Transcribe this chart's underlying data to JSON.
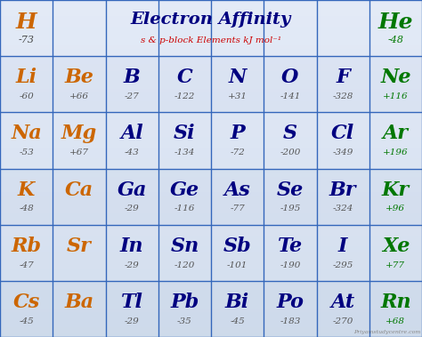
{
  "title": "Electron Affinity",
  "subtitle": "s & p-block Elements kJ mol⁻¹",
  "bg_top": "#e8eef8",
  "bg_bottom": "#c8d8ee",
  "row_colors": [
    "#dde8f4",
    "#eef2f8",
    "#dde8f4",
    "#eef2f8",
    "#dde8f4",
    "#eef2f8"
  ],
  "grid_color": "#3366bb",
  "watermark": "Priyamstudycentre.com",
  "n_rows": 6,
  "n_cols": 8,
  "elements": [
    [
      {
        "symbol": "H",
        "value": "-73",
        "sym_color": "#cc6600",
        "val_color": "#555555"
      },
      {
        "symbol": "",
        "value": "",
        "sym_color": "#000080",
        "val_color": "#555555",
        "is_title": true
      },
      {
        "symbol": "He",
        "value": "-48",
        "sym_color": "#007700",
        "val_color": "#007700"
      }
    ],
    [
      {
        "symbol": "Li",
        "value": "-60",
        "sym_color": "#cc6600",
        "val_color": "#555555"
      },
      {
        "symbol": "Be",
        "value": "+66",
        "sym_color": "#cc6600",
        "val_color": "#555555"
      },
      {
        "symbol": "B",
        "value": "-27",
        "sym_color": "#000080",
        "val_color": "#555555"
      },
      {
        "symbol": "C",
        "value": "-122",
        "sym_color": "#000080",
        "val_color": "#555555"
      },
      {
        "symbol": "N",
        "value": "+31",
        "sym_color": "#000080",
        "val_color": "#555555"
      },
      {
        "symbol": "O",
        "value": "-141",
        "sym_color": "#000080",
        "val_color": "#555555"
      },
      {
        "symbol": "F",
        "value": "-328",
        "sym_color": "#000080",
        "val_color": "#555555"
      },
      {
        "symbol": "Ne",
        "value": "+116",
        "sym_color": "#007700",
        "val_color": "#007700"
      }
    ],
    [
      {
        "symbol": "Na",
        "value": "-53",
        "sym_color": "#cc6600",
        "val_color": "#555555"
      },
      {
        "symbol": "Mg",
        "value": "+67",
        "sym_color": "#cc6600",
        "val_color": "#555555"
      },
      {
        "symbol": "Al",
        "value": "-43",
        "sym_color": "#000080",
        "val_color": "#555555"
      },
      {
        "symbol": "Si",
        "value": "-134",
        "sym_color": "#000080",
        "val_color": "#555555"
      },
      {
        "symbol": "P",
        "value": "-72",
        "sym_color": "#000080",
        "val_color": "#555555"
      },
      {
        "symbol": "S",
        "value": "-200",
        "sym_color": "#000080",
        "val_color": "#555555"
      },
      {
        "symbol": "Cl",
        "value": "-349",
        "sym_color": "#000080",
        "val_color": "#555555"
      },
      {
        "symbol": "Ar",
        "value": "+196",
        "sym_color": "#007700",
        "val_color": "#007700"
      }
    ],
    [
      {
        "symbol": "K",
        "value": "-48",
        "sym_color": "#cc6600",
        "val_color": "#555555"
      },
      {
        "symbol": "Ca",
        "value": "",
        "sym_color": "#cc6600",
        "val_color": "#555555"
      },
      {
        "symbol": "Ga",
        "value": "-29",
        "sym_color": "#000080",
        "val_color": "#555555"
      },
      {
        "symbol": "Ge",
        "value": "-116",
        "sym_color": "#000080",
        "val_color": "#555555"
      },
      {
        "symbol": "As",
        "value": "-77",
        "sym_color": "#000080",
        "val_color": "#555555"
      },
      {
        "symbol": "Se",
        "value": "-195",
        "sym_color": "#000080",
        "val_color": "#555555"
      },
      {
        "symbol": "Br",
        "value": "-324",
        "sym_color": "#000080",
        "val_color": "#555555"
      },
      {
        "symbol": "Kr",
        "value": "+96",
        "sym_color": "#007700",
        "val_color": "#007700"
      }
    ],
    [
      {
        "symbol": "Rb",
        "value": "-47",
        "sym_color": "#cc6600",
        "val_color": "#555555"
      },
      {
        "symbol": "Sr",
        "value": "",
        "sym_color": "#cc6600",
        "val_color": "#555555"
      },
      {
        "symbol": "In",
        "value": "-29",
        "sym_color": "#000080",
        "val_color": "#555555"
      },
      {
        "symbol": "Sn",
        "value": "-120",
        "sym_color": "#000080",
        "val_color": "#555555"
      },
      {
        "symbol": "Sb",
        "value": "-101",
        "sym_color": "#000080",
        "val_color": "#555555"
      },
      {
        "symbol": "Te",
        "value": "-190",
        "sym_color": "#000080",
        "val_color": "#555555"
      },
      {
        "symbol": "I",
        "value": "-295",
        "sym_color": "#000080",
        "val_color": "#555555"
      },
      {
        "symbol": "Xe",
        "value": "+77",
        "sym_color": "#007700",
        "val_color": "#007700"
      }
    ],
    [
      {
        "symbol": "Cs",
        "value": "-45",
        "sym_color": "#cc6600",
        "val_color": "#555555"
      },
      {
        "symbol": "Ba",
        "value": "",
        "sym_color": "#cc6600",
        "val_color": "#555555"
      },
      {
        "symbol": "Tl",
        "value": "-29",
        "sym_color": "#000080",
        "val_color": "#555555"
      },
      {
        "symbol": "Pb",
        "value": "-35",
        "sym_color": "#000080",
        "val_color": "#555555"
      },
      {
        "symbol": "Bi",
        "value": "-45",
        "sym_color": "#000080",
        "val_color": "#555555"
      },
      {
        "symbol": "Po",
        "value": "-183",
        "sym_color": "#000080",
        "val_color": "#555555"
      },
      {
        "symbol": "At",
        "value": "-270",
        "sym_color": "#000080",
        "val_color": "#555555"
      },
      {
        "symbol": "Rn",
        "value": "+68",
        "sym_color": "#007700",
        "val_color": "#007700"
      }
    ]
  ]
}
